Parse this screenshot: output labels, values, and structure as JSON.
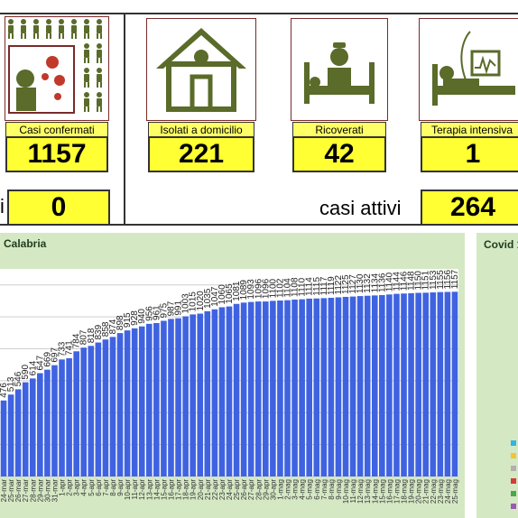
{
  "top_cards": {
    "confermati": {
      "label": "Casi confermati",
      "value": "1157"
    },
    "domicilio": {
      "label": "Isolati a domicilio",
      "value": "221"
    },
    "ricoverati": {
      "label": "Ricoverati",
      "value": "42"
    },
    "intensiva": {
      "label": "Terapia intensiva",
      "value": "1"
    }
  },
  "second_row": {
    "left_partial_label": "i",
    "left_value": "0",
    "attivi_label": "casi attivi",
    "attivi_value": "264"
  },
  "chart_title": "Calabria",
  "side_title": "Covid 1",
  "colors": {
    "bar": "#3f63e0",
    "panel_bg": "#d5e8c4",
    "card_yellow": "#ffff33",
    "icon_green": "#5a6b2a"
  },
  "legend_colors": [
    "#2fb5e6",
    "#f4c430",
    "#b0b0b0",
    "#d63b3b",
    "#4aa84a",
    "#9b59b6"
  ],
  "chart_data": {
    "type": "bar",
    "categories": [
      "24-mar",
      "25-mar",
      "26-mar",
      "27-mar",
      "28-mar",
      "29-mar",
      "30-mar",
      "31-mar",
      "1-apr",
      "2-apr",
      "3-apr",
      "4-apr",
      "5-apr",
      "6-apr",
      "7-apr",
      "8-apr",
      "9-apr",
      "10-apr",
      "11-apr",
      "12-apr",
      "13-apr",
      "14-apr",
      "15-apr",
      "16-apr",
      "17-apr",
      "18-apr",
      "19-apr",
      "20-apr",
      "21-apr",
      "22-apr",
      "23-apr",
      "24-apr",
      "25-apr",
      "26-apr",
      "27-apr",
      "28-apr",
      "29-apr",
      "30-apr",
      "1-mag",
      "2-mag",
      "3-mag",
      "4-mag",
      "5-mag",
      "6-mag",
      "7-mag",
      "8-mag",
      "9-mag",
      "10-mag",
      "11-mag",
      "12-mag",
      "13-mag",
      "14-mag",
      "15-mag",
      "16-mag",
      "17-mag",
      "18-mag",
      "19-mag",
      "20-mag",
      "21-mag",
      "22-mag",
      "23-mag",
      "24-mag",
      "25-mag"
    ],
    "values": [
      476,
      513,
      546,
      590,
      614,
      647,
      669,
      697,
      733,
      741,
      784,
      807,
      818,
      839,
      858,
      874,
      898,
      915,
      928,
      940,
      956,
      961,
      975,
      987,
      991,
      1003,
      1015,
      1020,
      1035,
      1047,
      1060,
      1065,
      1081,
      1089,
      1093,
      1096,
      1096,
      1100,
      1102,
      1104,
      1108,
      1110,
      1114,
      1115,
      1117,
      1119,
      1122,
      1125,
      1127,
      1130,
      1132,
      1134,
      1136,
      1140,
      1144,
      1146,
      1148,
      1150,
      1151,
      1153,
      1155,
      1156,
      1157
    ],
    "ylim": [
      0,
      1300
    ],
    "grid": true
  }
}
